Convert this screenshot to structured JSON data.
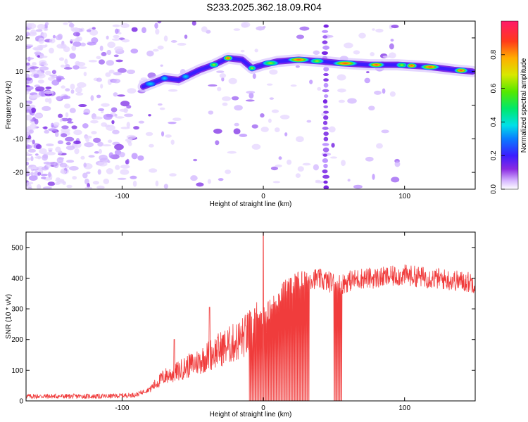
{
  "title": "S233.2025.362.18.09.R04",
  "chart_data": [
    {
      "type": "heatmap",
      "xlabel": "Height of straight line (km)",
      "ylabel": "Frequency (Hz)",
      "xlim": [
        -168,
        150
      ],
      "ylim": [
        -25,
        25
      ],
      "xticks": [
        -100,
        0,
        100
      ],
      "yticks": [
        -20,
        -10,
        0,
        10,
        20
      ],
      "colorbar": {
        "label": "Normalized spectral amplitude",
        "range": [
          0,
          1
        ],
        "ticks": [
          "0.0",
          "0.2",
          "0.4",
          "0.6",
          "0.8"
        ]
      },
      "ridge": {
        "description_points_km_hz": [
          [
            -85,
            5.5
          ],
          [
            -70,
            8
          ],
          [
            -60,
            7.5
          ],
          [
            -45,
            10.5
          ],
          [
            -35,
            12
          ],
          [
            -25,
            14
          ],
          [
            -15,
            13.5
          ],
          [
            -8,
            11
          ],
          [
            0,
            12
          ],
          [
            10,
            13
          ],
          [
            25,
            13.5
          ],
          [
            42,
            13
          ],
          [
            55,
            12.5
          ],
          [
            75,
            12
          ],
          [
            95,
            12
          ],
          [
            115,
            11.5
          ],
          [
            135,
            10.5
          ],
          [
            148,
            10
          ]
        ]
      },
      "vertical_stripe_km": 44
    },
    {
      "type": "line",
      "xlabel": "Height of straight line (km)",
      "ylabel": "SNR (10 * v/v)",
      "xlim": [
        -168,
        150
      ],
      "ylim": [
        0,
        550
      ],
      "xticks": [
        -100,
        0,
        100
      ],
      "yticks": [
        0,
        100,
        200,
        300,
        400,
        500
      ],
      "color": "#f03c3c",
      "series": [
        {
          "name": "SNR",
          "x": [
            -168,
            -140,
            -110,
            -90,
            -80,
            -70,
            -63,
            -55,
            -45,
            -38,
            -30,
            -20,
            -10,
            -5,
            0,
            5,
            10,
            15,
            20,
            25,
            30,
            35,
            40,
            45,
            50,
            55,
            60,
            65,
            70,
            80,
            90,
            100,
            110,
            120,
            130,
            140,
            150
          ],
          "values": [
            15,
            15,
            15,
            20,
            40,
            80,
            90,
            110,
            130,
            150,
            170,
            190,
            220,
            240,
            270,
            300,
            330,
            360,
            380,
            390,
            395,
            400,
            395,
            390,
            385,
            380,
            390,
            395,
            400,
            400,
            405,
            410,
            405,
            400,
            395,
            390,
            385
          ]
        }
      ],
      "annotations": {
        "spikes": [
          {
            "x": -63,
            "y": 200
          },
          {
            "x": -38,
            "y": 305
          },
          {
            "x": 0,
            "y": 550
          }
        ],
        "dropouts_to_zero_km_ranges": [
          [
            -10,
            33
          ],
          [
            50,
            56
          ]
        ]
      }
    }
  ]
}
